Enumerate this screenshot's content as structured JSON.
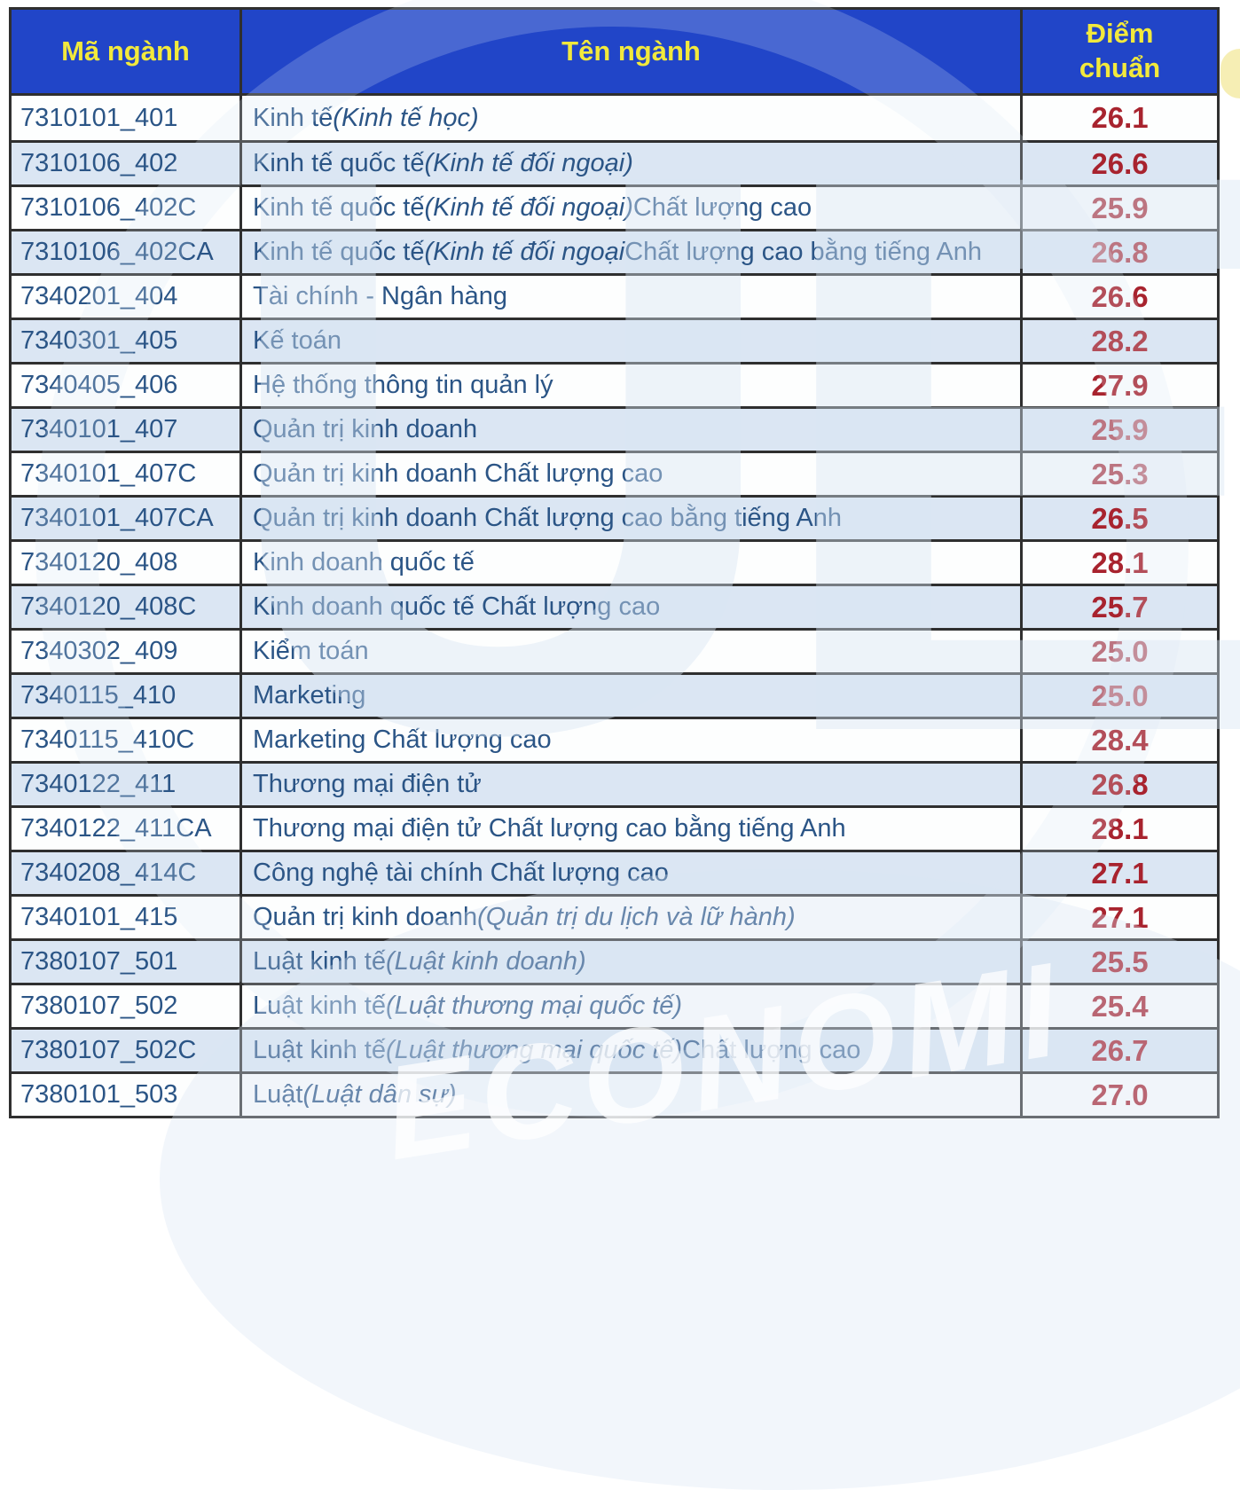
{
  "colors": {
    "page_bg": "#ffffff",
    "header_bg": "#2145c8",
    "header_text": "#f2e93c",
    "body_text": "#2b5586",
    "score_text": "#a8232e",
    "row_main": "#fdfefe",
    "row_alt": "#dbe6f3",
    "grid": "#2f2f2f",
    "wm_blue": "#d9e6f4",
    "wm_yellow": "#f5ecac"
  },
  "watermark": {
    "letters": "UEL",
    "bottom_text": "ECONOMI"
  },
  "table": {
    "columns": [
      {
        "label": "Mã ngành"
      },
      {
        "label": "Tên ngành"
      },
      {
        "label": "Điểm chuẩn"
      }
    ],
    "rows": [
      {
        "code": "7310101_401",
        "name": [
          {
            "t": "Kinh tế ",
            "i": false
          },
          {
            "t": "(Kinh tế học)",
            "i": true
          }
        ],
        "score": "26.1"
      },
      {
        "code": "7310106_402",
        "name": [
          {
            "t": "Kinh tế quốc tế ",
            "i": false
          },
          {
            "t": "(Kinh tế đối ngoại)",
            "i": true
          }
        ],
        "score": "26.6"
      },
      {
        "code": "7310106_402C",
        "name": [
          {
            "t": "Kinh tế quốc tế ",
            "i": false
          },
          {
            "t": "(Kinh tế đối ngoại)",
            "i": true
          },
          {
            "t": " Chất lượng cao",
            "i": false
          }
        ],
        "score": "25.9"
      },
      {
        "code": "7310106_402CA",
        "name": [
          {
            "t": "Kinh tế quốc tế ",
            "i": false
          },
          {
            "t": "(Kinh tế đối ngoại",
            "i": true
          },
          {
            "t": " Chất lượng cao bằng tiếng Anh",
            "i": false
          }
        ],
        "score": "26.8"
      },
      {
        "code": "7340201_404",
        "name": [
          {
            "t": "Tài chính - Ngân hàng",
            "i": false
          }
        ],
        "score": "26.6"
      },
      {
        "code": "7340301_405",
        "name": [
          {
            "t": "Kế toán",
            "i": false
          }
        ],
        "score": "28.2"
      },
      {
        "code": "7340405_406",
        "name": [
          {
            "t": "Hệ thống thông tin quản lý",
            "i": false
          }
        ],
        "score": "27.9"
      },
      {
        "code": "7340101_407",
        "name": [
          {
            "t": "Quản trị kinh doanh",
            "i": false
          }
        ],
        "score": "25.9"
      },
      {
        "code": "7340101_407C",
        "name": [
          {
            "t": "Quản trị kinh doanh Chất lượng cao",
            "i": false
          }
        ],
        "score": "25.3"
      },
      {
        "code": "7340101_407CA",
        "name": [
          {
            "t": "Quản trị kinh doanh Chất lượng cao bằng tiếng Anh",
            "i": false
          }
        ],
        "score": "26.5"
      },
      {
        "code": "7340120_408",
        "name": [
          {
            "t": "Kinh doanh quốc tế",
            "i": false
          }
        ],
        "score": "28.1"
      },
      {
        "code": "7340120_408C",
        "name": [
          {
            "t": "Kinh doanh quốc tế Chất lượng cao",
            "i": false
          }
        ],
        "score": "25.7"
      },
      {
        "code": "7340302_409",
        "name": [
          {
            "t": "Kiểm toán",
            "i": false
          }
        ],
        "score": "25.0"
      },
      {
        "code": "7340115_410",
        "name": [
          {
            "t": "Marketing",
            "i": false
          }
        ],
        "score": "25.0"
      },
      {
        "code": "7340115_410C",
        "name": [
          {
            "t": "Marketing Chất lượng cao",
            "i": false
          }
        ],
        "score": "28.4"
      },
      {
        "code": "7340122_411",
        "name": [
          {
            "t": "Thương mại điện tử",
            "i": false
          }
        ],
        "score": "26.8"
      },
      {
        "code": "7340122_411CA",
        "name": [
          {
            "t": "Thương mại điện tử Chất lượng cao bằng tiếng Anh",
            "i": false
          }
        ],
        "score": "28.1"
      },
      {
        "code": "7340208_414C",
        "name": [
          {
            "t": "Công nghệ tài chính Chất lượng cao",
            "i": false
          }
        ],
        "score": "27.1"
      },
      {
        "code": "7340101_415",
        "name": [
          {
            "t": "Quản trị kinh doanh ",
            "i": false
          },
          {
            "t": "(Quản trị du lịch và lữ hành)",
            "i": true
          }
        ],
        "score": "27.1"
      },
      {
        "code": "7380107_501",
        "name": [
          {
            "t": "Luật kinh tế ",
            "i": false
          },
          {
            "t": "(Luật kinh doanh)",
            "i": true
          }
        ],
        "score": "25.5"
      },
      {
        "code": "7380107_502",
        "name": [
          {
            "t": "Luật kinh tế ",
            "i": false
          },
          {
            "t": "(Luật thương mại quốc tế)",
            "i": true
          }
        ],
        "score": "25.4"
      },
      {
        "code": "7380107_502C",
        "name": [
          {
            "t": "Luật kinh tế ",
            "i": false
          },
          {
            "t": "(Luật thương mại quốc tế)",
            "i": true
          },
          {
            "t": " Chất lượng cao",
            "i": false
          }
        ],
        "score": "26.7"
      },
      {
        "code": "7380101_503",
        "name": [
          {
            "t": "Luật ",
            "i": false
          },
          {
            "t": "(Luật dân sự)",
            "i": true
          }
        ],
        "score": "27.0"
      }
    ]
  }
}
